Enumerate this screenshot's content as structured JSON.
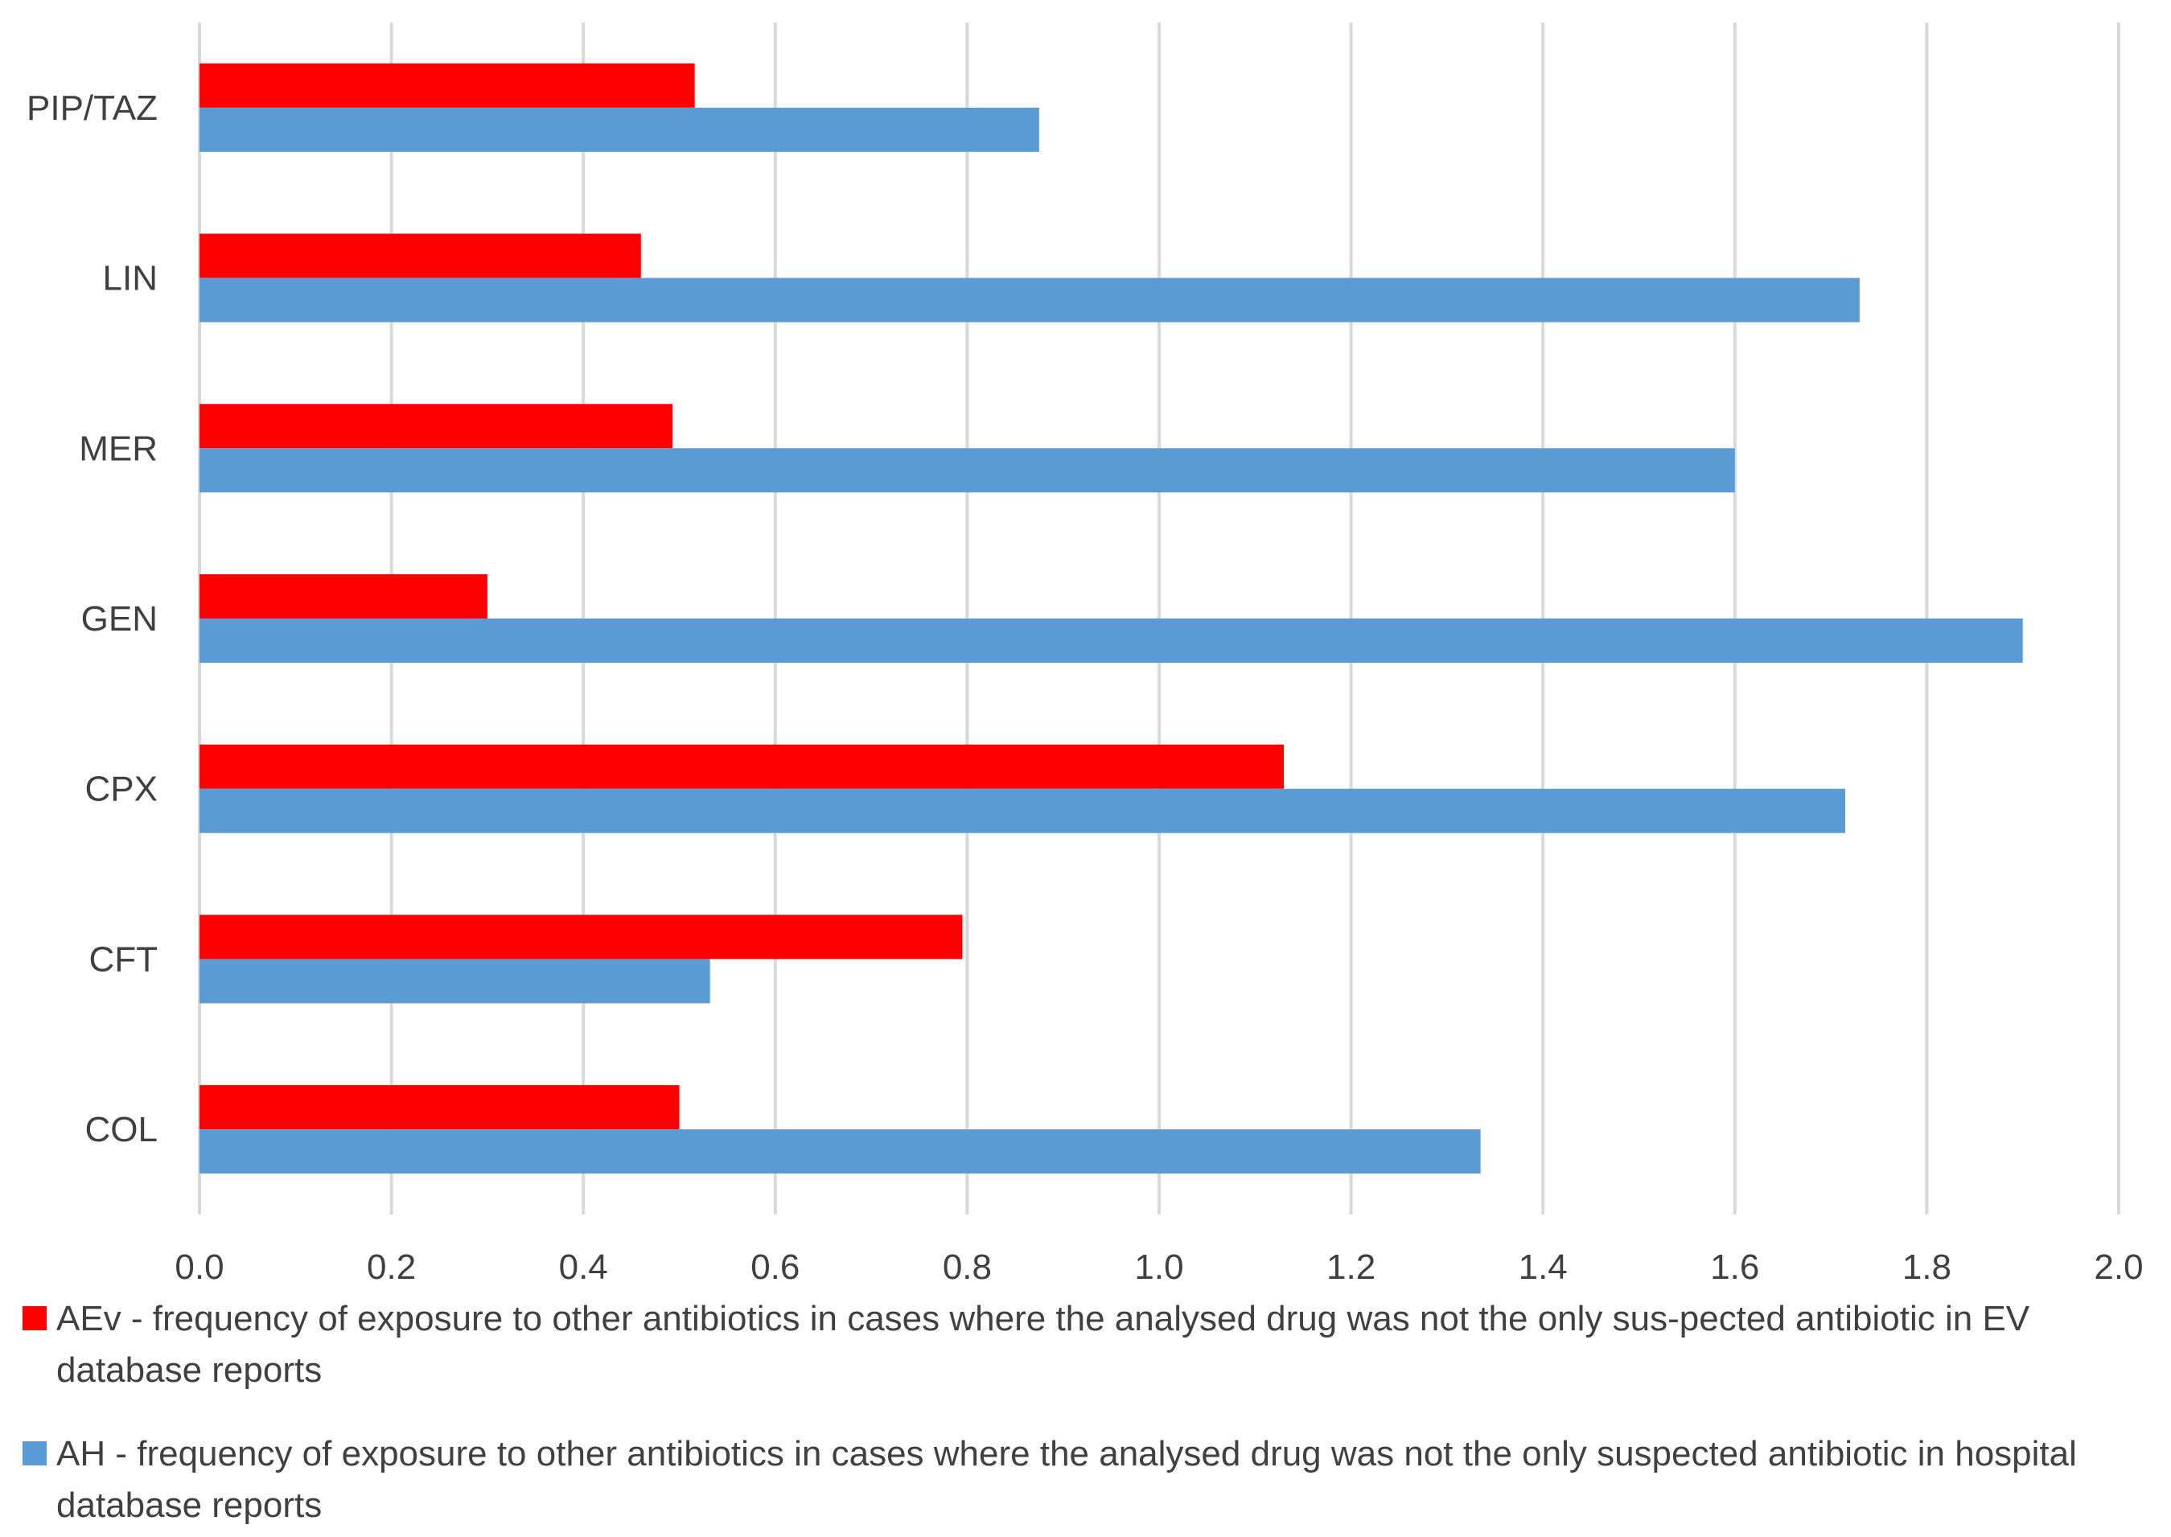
{
  "chart_data": {
    "type": "bar",
    "orientation": "horizontal",
    "title": "",
    "xlabel": "",
    "ylabel": "",
    "xlim": [
      0,
      2.0
    ],
    "x_ticks": [
      "0.0",
      "0.2",
      "0.4",
      "0.6",
      "0.8",
      "1.0",
      "1.2",
      "1.4",
      "1.6",
      "1.8",
      "2.0"
    ],
    "grid": true,
    "legend_position": "bottom",
    "categories": [
      "PIP/TAZ",
      "LIN",
      "MER",
      "GEN",
      "CPX",
      "CFT",
      "COL"
    ],
    "series": [
      {
        "name": "AEv - frequency of exposure to other antibiotics in cases where the analysed drug was not the only sus-pected antibiotic in EV database reports",
        "color": "#ff0000",
        "values": [
          0.516,
          0.46,
          0.493,
          0.3,
          1.13,
          0.795,
          0.5
        ]
      },
      {
        "name": "AH - frequency of exposure to other antibiotics in cases where the analysed drug was not the only suspected antibiotic in hospital database reports",
        "color": "#5b9bd5",
        "values": [
          0.875,
          1.73,
          1.6,
          1.9,
          1.715,
          0.532,
          1.335
        ]
      }
    ]
  }
}
